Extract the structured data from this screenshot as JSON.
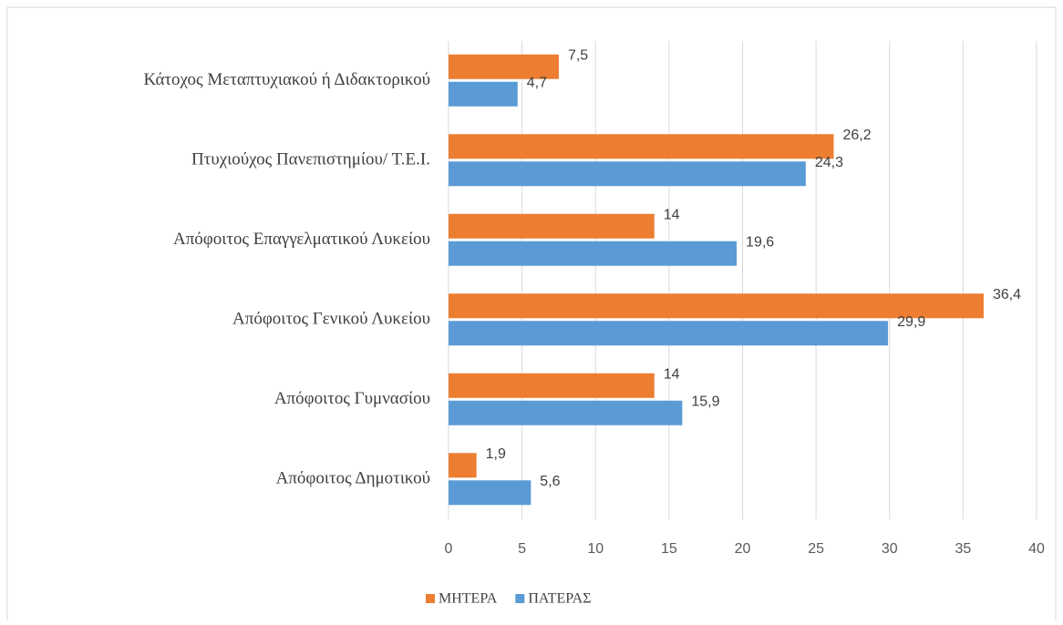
{
  "chart_data": {
    "type": "bar",
    "orientation": "horizontal",
    "categories": [
      "Κάτοχος Μεταπτυχιακού ή Διδακτορικού",
      "Πτυχιούχος Πανεπιστημίου/ Τ.Ε.Ι.",
      "Απόφοιτος Επαγγελματικού Λυκείου",
      "Απόφοιτος Γενικού Λυκείου",
      "Απόφοιτος Γυμνασίου",
      "Απόφοιτος Δημοτικού"
    ],
    "series": [
      {
        "name": "ΜΗΤΕΡΑ",
        "color": "#ed7d31",
        "values": [
          7.5,
          26.2,
          14,
          36.4,
          14,
          1.9
        ],
        "value_labels": [
          "7,5",
          "26,2",
          "14",
          "36,4",
          "14",
          "1,9"
        ]
      },
      {
        "name": "ΠΑΤΕΡΑΣ",
        "color": "#5b9bd5",
        "values": [
          4.7,
          24.3,
          19.6,
          29.9,
          15.9,
          5.6
        ],
        "value_labels": [
          "4,7",
          "24,3",
          "19,6",
          "29,9",
          "15,9",
          "5,6"
        ]
      }
    ],
    "xlim": [
      0,
      40
    ],
    "xticks": [
      0,
      5,
      10,
      15,
      20,
      25,
      30,
      35,
      40
    ],
    "grid": true,
    "legend": "bottom"
  }
}
